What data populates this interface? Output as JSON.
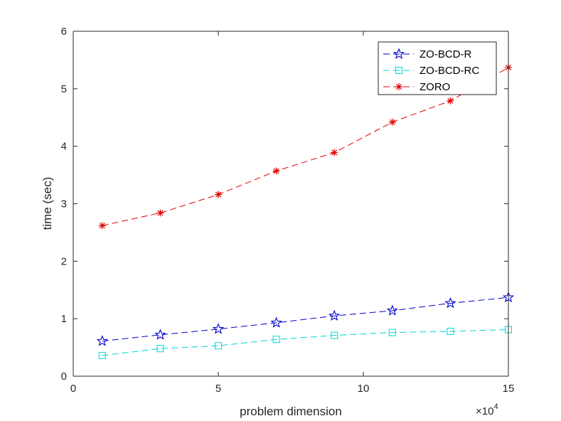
{
  "chart_data": {
    "type": "line",
    "title": "",
    "xlabel": "problem dimension",
    "ylabel": "time (sec)",
    "x_multiplier_label": "×10",
    "x_multiplier_exponent": "4",
    "xlim": [
      0,
      15
    ],
    "ylim": [
      0,
      6
    ],
    "xticks": [
      0,
      5,
      10,
      15
    ],
    "yticks": [
      0,
      1,
      2,
      3,
      4,
      5,
      6
    ],
    "grid": false,
    "legend_position": "top-right",
    "x": [
      1,
      3,
      5,
      7,
      9,
      11,
      13,
      15
    ],
    "series": [
      {
        "name": "ZO-BCD-R",
        "color": "#0000cc",
        "marker": "star",
        "values": [
          0.61,
          0.72,
          0.82,
          0.93,
          1.05,
          1.14,
          1.27,
          1.37
        ]
      },
      {
        "name": "ZO-BCD-RC",
        "color": "#00d6d6",
        "marker": "square",
        "values": [
          0.36,
          0.48,
          0.53,
          0.64,
          0.71,
          0.76,
          0.78,
          0.81
        ]
      },
      {
        "name": "ZORO",
        "color": "#e00000",
        "marker": "asterisk",
        "values": [
          2.62,
          2.84,
          3.16,
          3.57,
          3.89,
          4.42,
          4.79,
          5.37
        ]
      }
    ]
  }
}
